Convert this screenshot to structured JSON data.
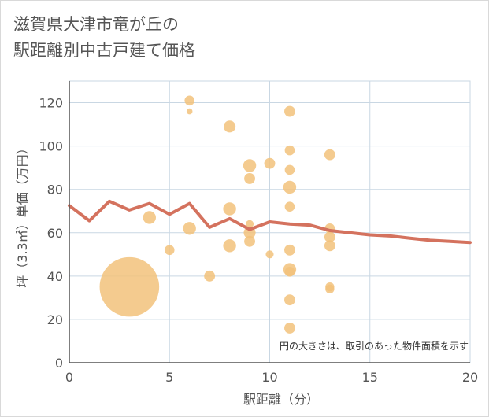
{
  "title": {
    "line1": "滋賀県大津市竜が丘の",
    "line2": "駅距離別中古戸建て価格"
  },
  "note": "円の大きさは、取引のあった物件面積を示す",
  "colors": {
    "bubble": "#f2c27b",
    "line": "#d4725e",
    "grid": "#c9d7e3",
    "axis": "#555555"
  },
  "chart_data": {
    "type": "scatter",
    "xlabel": "駅距離（分）",
    "ylabel": "坪（3.3㎡）単価（万円）",
    "xlim": [
      0,
      20
    ],
    "ylim": [
      0,
      130
    ],
    "xticks": [
      0,
      5,
      10,
      15,
      20
    ],
    "yticks": [
      0,
      20,
      40,
      60,
      80,
      100,
      120
    ],
    "grid": true,
    "bubbles": [
      {
        "x": 3,
        "y": 35,
        "size": 6
      },
      {
        "x": 4,
        "y": 67,
        "size": 1.3
      },
      {
        "x": 5,
        "y": 52,
        "size": 1
      },
      {
        "x": 6,
        "y": 121,
        "size": 1
      },
      {
        "x": 6,
        "y": 116,
        "size": 0.6
      },
      {
        "x": 6,
        "y": 62,
        "size": 1.3
      },
      {
        "x": 7,
        "y": 40,
        "size": 1.1
      },
      {
        "x": 8,
        "y": 109,
        "size": 1.2
      },
      {
        "x": 8,
        "y": 71,
        "size": 1.3
      },
      {
        "x": 8,
        "y": 54,
        "size": 1.3
      },
      {
        "x": 9,
        "y": 91,
        "size": 1.3
      },
      {
        "x": 9,
        "y": 85,
        "size": 1.1
      },
      {
        "x": 9,
        "y": 64,
        "size": 0.8
      },
      {
        "x": 9,
        "y": 60,
        "size": 1.2
      },
      {
        "x": 9,
        "y": 56,
        "size": 1.1
      },
      {
        "x": 10,
        "y": 92,
        "size": 1.1
      },
      {
        "x": 10,
        "y": 50,
        "size": 0.8
      },
      {
        "x": 11,
        "y": 116,
        "size": 1.1
      },
      {
        "x": 11,
        "y": 98,
        "size": 1
      },
      {
        "x": 11,
        "y": 89,
        "size": 1
      },
      {
        "x": 11,
        "y": 81,
        "size": 1.3
      },
      {
        "x": 11,
        "y": 72,
        "size": 1
      },
      {
        "x": 11,
        "y": 52,
        "size": 1.1
      },
      {
        "x": 11,
        "y": 43,
        "size": 1.3
      },
      {
        "x": 11,
        "y": 42,
        "size": 1
      },
      {
        "x": 11,
        "y": 29,
        "size": 1.1
      },
      {
        "x": 11,
        "y": 16,
        "size": 1.1
      },
      {
        "x": 13,
        "y": 96,
        "size": 1.1
      },
      {
        "x": 13,
        "y": 62,
        "size": 1
      },
      {
        "x": 13,
        "y": 58,
        "size": 1.1
      },
      {
        "x": 13,
        "y": 54,
        "size": 1.1
      },
      {
        "x": 13,
        "y": 35,
        "size": 0.9
      },
      {
        "x": 13,
        "y": 34,
        "size": 0.9
      }
    ],
    "line": {
      "x": [
        0,
        1,
        2,
        3,
        4,
        5,
        6,
        7,
        8,
        9,
        10,
        11,
        12,
        13,
        14,
        15,
        16,
        17,
        18,
        19,
        20
      ],
      "y": [
        72.5,
        65.5,
        74.5,
        70.5,
        73.5,
        68.5,
        73.5,
        62.5,
        66.5,
        61.5,
        65,
        64,
        63.5,
        61,
        60,
        59,
        58.5,
        57.5,
        56.5,
        56,
        55.5
      ]
    }
  }
}
